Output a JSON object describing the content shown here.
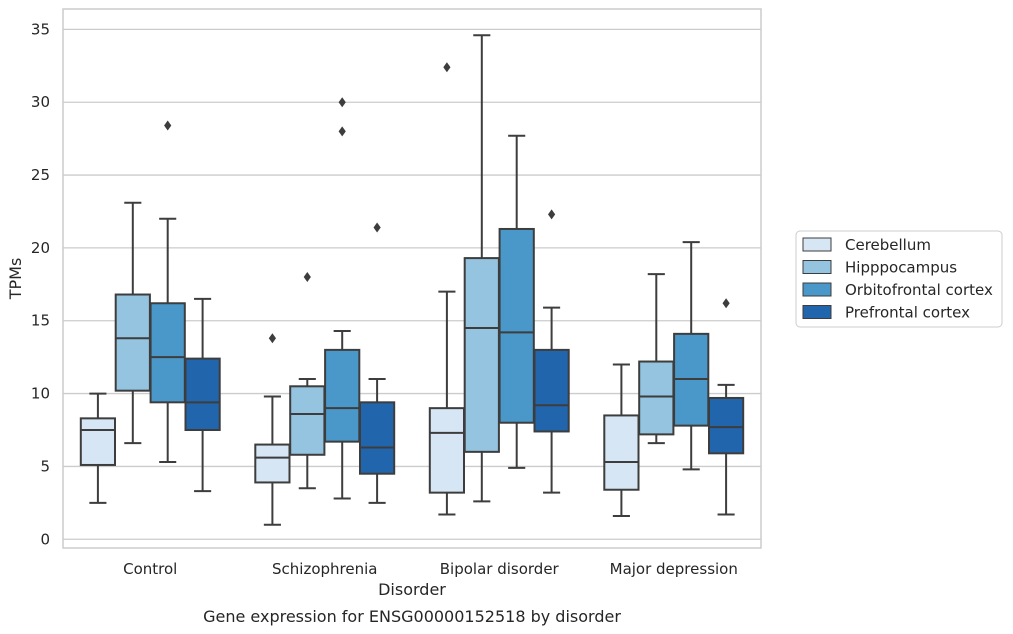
{
  "chart_data": {
    "type": "box",
    "title": "Gene expression for ENSG00000152518 by disorder",
    "xlabel": "Disorder",
    "ylabel": "TPMs",
    "ylim": [
      -0.6,
      36.4
    ],
    "yticks": [
      0,
      5,
      10,
      15,
      20,
      25,
      30,
      35
    ],
    "grid": "horizontal",
    "legend_position": "right",
    "categories": [
      "Control",
      "Schizophrenia",
      "Bipolar disorder",
      "Major depression"
    ],
    "series": [
      {
        "name": "Cerebellum",
        "color": "#d6e6f4",
        "boxes": [
          {
            "whislo": 2.5,
            "q1": 5.1,
            "med": 7.5,
            "q3": 8.3,
            "whishi": 10.0,
            "fliers": []
          },
          {
            "whislo": 1.0,
            "q1": 3.9,
            "med": 5.6,
            "q3": 6.5,
            "whishi": 9.8,
            "fliers": [
              13.8
            ]
          },
          {
            "whislo": 1.7,
            "q1": 3.2,
            "med": 7.3,
            "q3": 9.0,
            "whishi": 17.0,
            "fliers": [
              32.4
            ]
          },
          {
            "whislo": 1.6,
            "q1": 3.4,
            "med": 5.3,
            "q3": 8.5,
            "whishi": 12.0,
            "fliers": []
          }
        ]
      },
      {
        "name": "Hipppocampus",
        "color": "#94c4df",
        "boxes": [
          {
            "whislo": 6.6,
            "q1": 10.2,
            "med": 13.8,
            "q3": 16.8,
            "whishi": 23.1,
            "fliers": []
          },
          {
            "whislo": 3.5,
            "q1": 5.8,
            "med": 8.6,
            "q3": 10.5,
            "whishi": 11.0,
            "fliers": [
              18.0
            ]
          },
          {
            "whislo": 2.6,
            "q1": 6.0,
            "med": 14.5,
            "q3": 19.3,
            "whishi": 34.6,
            "fliers": []
          },
          {
            "whislo": 6.6,
            "q1": 7.2,
            "med": 9.8,
            "q3": 12.2,
            "whishi": 18.2,
            "fliers": []
          }
        ]
      },
      {
        "name": "Orbitofrontal cortex",
        "color": "#4a98c9",
        "boxes": [
          {
            "whislo": 5.3,
            "q1": 9.4,
            "med": 12.5,
            "q3": 16.2,
            "whishi": 22.0,
            "fliers": [
              28.4
            ]
          },
          {
            "whislo": 2.8,
            "q1": 6.7,
            "med": 9.0,
            "q3": 13.0,
            "whishi": 14.3,
            "fliers": [
              28.0,
              30.0
            ]
          },
          {
            "whislo": 4.9,
            "q1": 8.0,
            "med": 14.2,
            "q3": 21.3,
            "whishi": 27.7,
            "fliers": []
          },
          {
            "whislo": 4.8,
            "q1": 7.8,
            "med": 11.0,
            "q3": 14.1,
            "whishi": 20.4,
            "fliers": []
          }
        ]
      },
      {
        "name": "Prefrontal cortex",
        "color": "#2166ac",
        "boxes": [
          {
            "whislo": 3.3,
            "q1": 7.5,
            "med": 9.4,
            "q3": 12.4,
            "whishi": 16.5,
            "fliers": []
          },
          {
            "whislo": 2.5,
            "q1": 4.5,
            "med": 6.3,
            "q3": 9.4,
            "whishi": 11.0,
            "fliers": [
              21.4
            ]
          },
          {
            "whislo": 3.2,
            "q1": 7.4,
            "med": 9.2,
            "q3": 13.0,
            "whishi": 15.9,
            "fliers": [
              22.3
            ]
          },
          {
            "whislo": 1.7,
            "q1": 5.9,
            "med": 7.7,
            "q3": 9.7,
            "whishi": 10.6,
            "fliers": [
              16.2
            ]
          }
        ]
      }
    ]
  }
}
